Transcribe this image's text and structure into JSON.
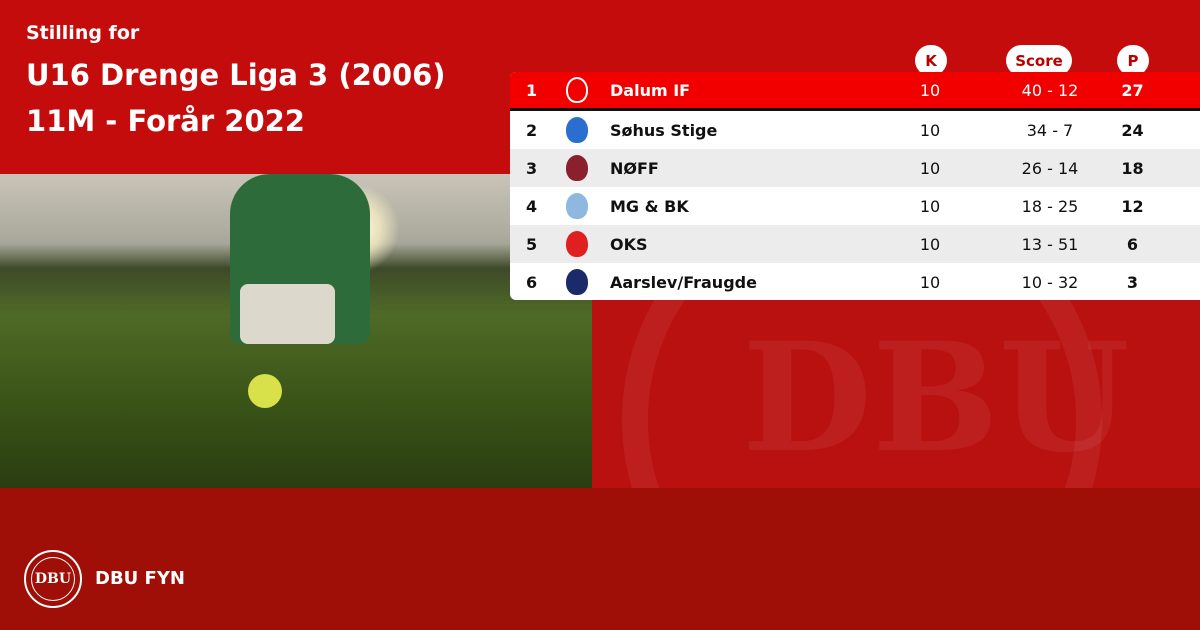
{
  "header": {
    "subtitle": "Stilling for",
    "league": "U16 Drenge Liga 3 (2006)",
    "season": "11M - Forår 2022"
  },
  "columns": {
    "played": "K",
    "score": "Score",
    "points": "P"
  },
  "rows": [
    {
      "pos": "1",
      "team": "Dalum IF",
      "played": "10",
      "score": "40 - 12",
      "points": "27",
      "crest_color": "#ffffff"
    },
    {
      "pos": "2",
      "team": "Søhus Stige",
      "played": "10",
      "score": "34 - 7",
      "points": "24",
      "crest_color": "#2a6fd0"
    },
    {
      "pos": "3",
      "team": "NØFF",
      "played": "10",
      "score": "26 - 14",
      "points": "18",
      "crest_color": "#8a1f2e"
    },
    {
      "pos": "4",
      "team": "MG & BK",
      "played": "10",
      "score": "18 - 25",
      "points": "12",
      "crest_color": "#8fb8e0"
    },
    {
      "pos": "5",
      "team": "OKS",
      "played": "10",
      "score": "13 - 51",
      "points": "6",
      "crest_color": "#e02020"
    },
    {
      "pos": "6",
      "team": "Aarslev/Fraugde",
      "played": "10",
      "score": "10 - 32",
      "points": "3",
      "crest_color": "#1a2a6a"
    }
  ],
  "footer": {
    "brand": "DBU FYN",
    "logo_text": "DBU"
  },
  "colors": {
    "primary": "#c50c0d",
    "highlight": "#f20000",
    "footer": "#9f0f07"
  }
}
